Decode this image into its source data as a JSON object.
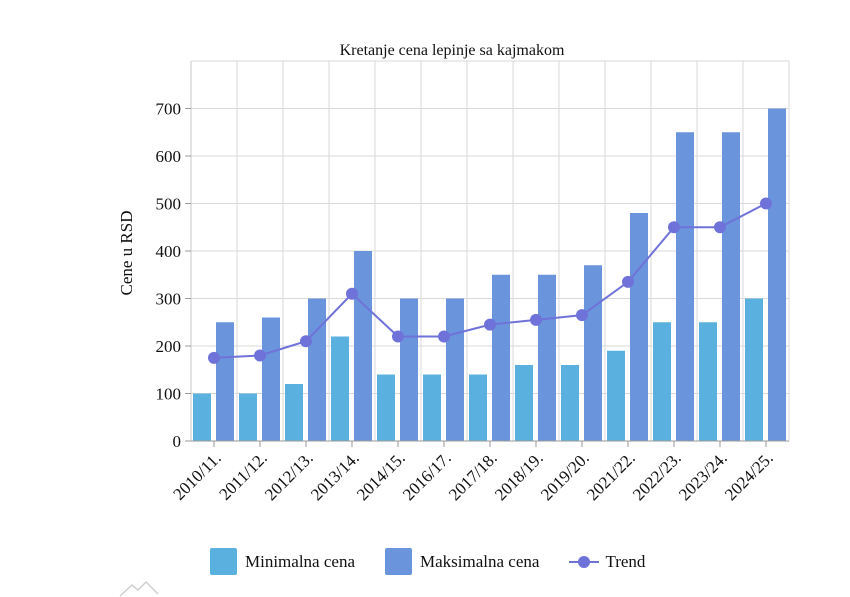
{
  "chart_data": {
    "type": "bar",
    "title": "Kretanje cena lepinje sa kajmakom",
    "xlabel": "",
    "ylabel": "Cene u RSD",
    "ylim": [
      0,
      800
    ],
    "yticks": [
      0,
      100,
      200,
      300,
      400,
      500,
      600,
      700
    ],
    "grid": true,
    "legend_position": "bottom",
    "categories": [
      "2010/11.",
      "2011/12.",
      "2012/13.",
      "2013/14.",
      "2014/15.",
      "2016/17.",
      "2017/18.",
      "2018/19.",
      "2019/20.",
      "2021/22.",
      "2022/23.",
      "2023/24.",
      "2024/25."
    ],
    "series": [
      {
        "name": "Minimalna cena",
        "type": "bar",
        "color": "#5ab1df",
        "values": [
          100,
          100,
          120,
          220,
          140,
          140,
          140,
          160,
          160,
          190,
          250,
          250,
          300
        ]
      },
      {
        "name": "Maksimalna cena",
        "type": "bar",
        "color": "#6a94dc",
        "values": [
          250,
          260,
          300,
          400,
          300,
          300,
          350,
          350,
          370,
          480,
          650,
          650,
          700
        ]
      },
      {
        "name": "Trend",
        "type": "line",
        "color": "#6f72d8",
        "values": [
          175,
          180,
          210,
          310,
          220,
          220,
          245,
          255,
          265,
          335,
          450,
          450,
          500
        ]
      }
    ]
  }
}
